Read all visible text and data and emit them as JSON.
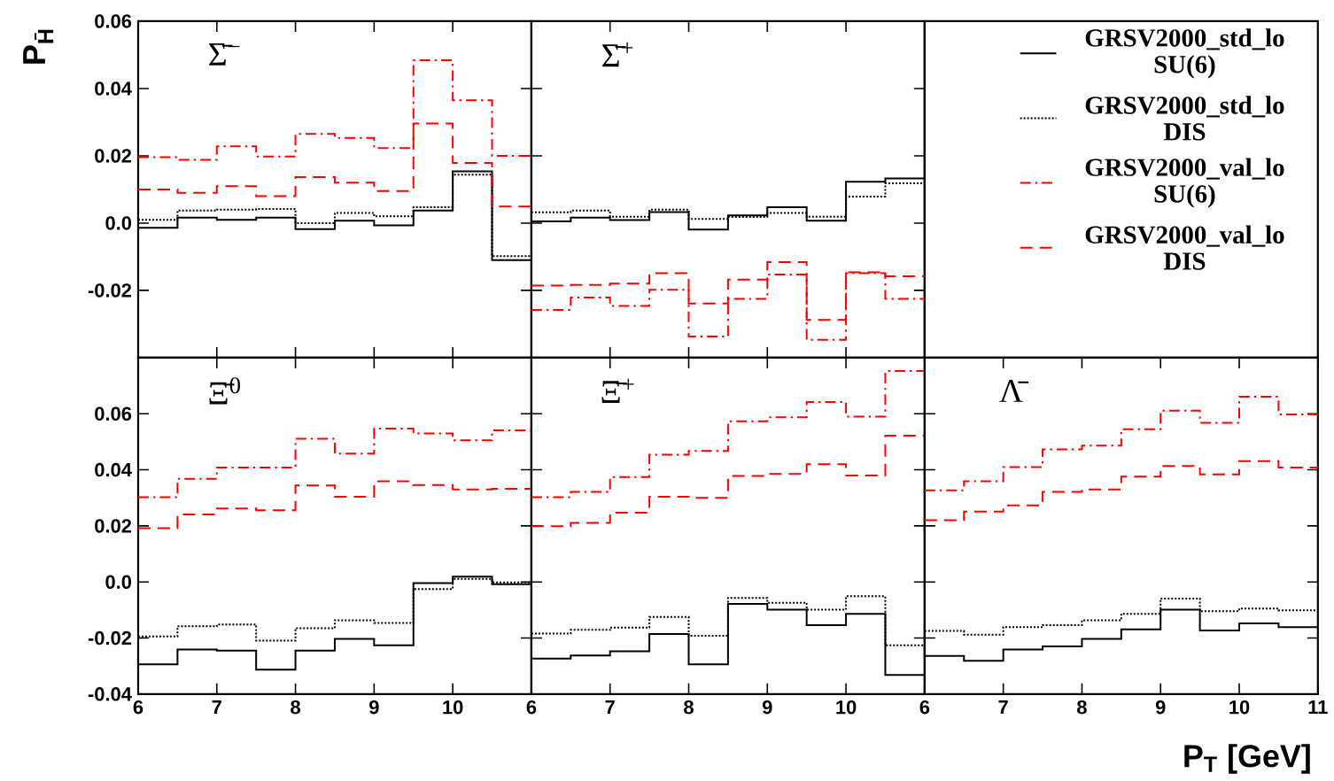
{
  "chart_data": [
    {
      "type": "step",
      "title": "Σ̄$^{−}$",
      "ylabel": "P$_{H̄}$",
      "x": [
        6,
        6.5,
        7,
        7.5,
        8,
        8.5,
        9,
        9.5,
        10,
        10.5,
        11
      ],
      "xlim": [
        6,
        11
      ],
      "ylim": [
        -0.04,
        0.06
      ],
      "xticks": [
        6,
        7,
        8,
        9,
        10
      ],
      "yticks": [
        -0.02,
        {
          "value": 0,
          "label": "0.0"
        },
        0.02,
        0.04,
        0.06
      ],
      "tick_labels": "y",
      "legend": "right",
      "series": [
        {
          "name": "GRSV2000_std_lo SU(6)",
          "color": "#000000",
          "line_style": "solid",
          "values": [
            -0.0014,
            0.0016,
            0.001,
            0.0016,
            -0.0018,
            0.0007,
            -0.0007,
            0.0037,
            0.0154,
            -0.011,
            -0.011
          ]
        },
        {
          "name": "GRSV2000_std_lo DIS",
          "color": "#000000",
          "line_style": "dotted",
          "values": [
            0.001,
            0.0037,
            0.004,
            0.0042,
            0.0,
            0.003,
            0.002,
            0.0047,
            0.0144,
            -0.0098,
            -0.0098
          ]
        },
        {
          "name": "GRSV2000_val_lo SU(6)",
          "color": "#ff0000",
          "line_style": "dashdot",
          "values": [
            0.0196,
            0.0188,
            0.0228,
            0.0198,
            0.0265,
            0.0253,
            0.0223,
            0.0484,
            0.0365,
            0.02,
            0.02
          ]
        },
        {
          "name": "GRSV2000_val_lo DIS",
          "color": "#ff0000",
          "line_style": "dashed",
          "values": [
            0.01,
            0.009,
            0.011,
            0.008,
            0.0137,
            0.012,
            0.0095,
            0.0296,
            0.0179,
            0.0049,
            0.0049
          ]
        }
      ]
    },
    {
      "type": "step",
      "title": "Σ̄$^{+}$",
      "x": [
        6,
        6.5,
        7,
        7.5,
        8,
        8.5,
        9,
        9.5,
        10,
        10.5,
        11
      ],
      "xlim": [
        6,
        11
      ],
      "ylim": [
        -0.04,
        0.06
      ],
      "xticks": [
        6,
        7,
        8,
        9,
        10
      ],
      "yticks": [
        -0.02,
        0,
        0.02,
        0.04,
        0.06
      ],
      "tick_labels": false,
      "series": [
        {
          "color": "#000000",
          "line_style": "solid",
          "values": [
            0.0005,
            0.0016,
            0.0009,
            0.0033,
            -0.0019,
            0.0023,
            0.0047,
            0.0007,
            0.0123,
            0.0133,
            0.0133
          ]
        },
        {
          "color": "#000000",
          "line_style": "dotted",
          "values": [
            0.0032,
            0.0037,
            0.0019,
            0.004,
            0.0012,
            0.0018,
            0.003,
            0.0019,
            0.0079,
            0.0118,
            0.0118
          ]
        },
        {
          "color": "#ff0000",
          "line_style": "dashdot",
          "values": [
            -0.0258,
            -0.0221,
            -0.0246,
            -0.0198,
            -0.0337,
            -0.0225,
            -0.0153,
            -0.0347,
            -0.0149,
            -0.0225,
            -0.0225
          ]
        },
        {
          "color": "#ff0000",
          "line_style": "dashed",
          "values": [
            -0.0186,
            -0.0184,
            -0.018,
            -0.0149,
            -0.0239,
            -0.0168,
            -0.0116,
            -0.0288,
            -0.0146,
            -0.0158,
            -0.0158
          ]
        }
      ]
    },
    {
      "type": "step",
      "title": "Ξ̄$^{0}$",
      "x": [
        6,
        6.5,
        7,
        7.5,
        8,
        8.5,
        9,
        9.5,
        10,
        10.5,
        11
      ],
      "xlim": [
        6,
        11
      ],
      "ylim": [
        -0.04,
        0.08
      ],
      "xticks": [
        6,
        7,
        8,
        9,
        10
      ],
      "yticks": [
        -0.04,
        -0.02,
        {
          "value": 0,
          "label": "0.0"
        },
        0.02,
        0.04,
        0.06
      ],
      "series": [
        {
          "color": "#000000",
          "line_style": "solid",
          "values": [
            -0.0294,
            -0.0241,
            -0.0245,
            -0.0313,
            -0.0245,
            -0.0203,
            -0.0226,
            -0.0004,
            0.0019,
            -0.0008,
            -0.0008
          ]
        },
        {
          "color": "#000000",
          "line_style": "dotted",
          "values": [
            -0.0194,
            -0.0158,
            -0.0152,
            -0.0209,
            -0.0165,
            -0.0137,
            -0.0146,
            -0.0025,
            0.0011,
            -0.0002,
            -0.0002
          ]
        },
        {
          "color": "#ff0000",
          "line_style": "dashdot",
          "values": [
            0.0302,
            0.0368,
            0.0408,
            0.0408,
            0.0511,
            0.0458,
            0.0547,
            0.053,
            0.0505,
            0.0541,
            0.0541
          ]
        },
        {
          "color": "#ff0000",
          "line_style": "dashed",
          "values": [
            0.0192,
            0.0241,
            0.0262,
            0.0256,
            0.0344,
            0.0304,
            0.0359,
            0.0346,
            0.033,
            0.0332,
            0.0332
          ]
        }
      ]
    },
    {
      "type": "step",
      "title": "Ξ̄$^{+}$",
      "x": [
        6,
        6.5,
        7,
        7.5,
        8,
        8.5,
        9,
        9.5,
        10,
        10.5,
        11
      ],
      "xlim": [
        6,
        11
      ],
      "ylim": [
        -0.04,
        0.08
      ],
      "xticks": [
        6,
        7,
        8,
        9,
        10
      ],
      "yticks": [
        -0.04,
        -0.02,
        0,
        0.02,
        0.04,
        0.06
      ],
      "tick_labels": "x",
      "series": [
        {
          "color": "#000000",
          "line_style": "solid",
          "values": [
            -0.0273,
            -0.0262,
            -0.0247,
            -0.0186,
            -0.0294,
            -0.0078,
            -0.0099,
            -0.0154,
            -0.0114,
            -0.0332,
            -0.0332
          ]
        },
        {
          "color": "#000000",
          "line_style": "dotted",
          "values": [
            -0.0184,
            -0.0171,
            -0.0163,
            -0.0125,
            -0.0192,
            -0.0057,
            -0.0074,
            -0.0099,
            -0.0051,
            -0.0226,
            -0.0226
          ]
        },
        {
          "color": "#ff0000",
          "line_style": "dashdot",
          "values": [
            0.0302,
            0.0321,
            0.0374,
            0.0454,
            0.0467,
            0.0573,
            0.0587,
            0.0642,
            0.059,
            0.0752,
            0.0752
          ]
        },
        {
          "color": "#ff0000",
          "line_style": "dashed",
          "values": [
            0.0199,
            0.0211,
            0.0247,
            0.0304,
            0.03,
            0.0378,
            0.0385,
            0.042,
            0.038,
            0.0522,
            0.0522
          ]
        }
      ]
    },
    {
      "type": "step",
      "title": "Λ̄",
      "xlabel": "P$_{T}$ [GeV]",
      "x": [
        6,
        6.5,
        7,
        7.5,
        8,
        8.5,
        9,
        9.5,
        10,
        10.5,
        11
      ],
      "xlim": [
        6,
        11
      ],
      "ylim": [
        -0.04,
        0.08
      ],
      "xticks": [
        6,
        7,
        8,
        9,
        10,
        11
      ],
      "yticks": [
        -0.04,
        -0.02,
        0,
        0.02,
        0.04,
        0.06
      ],
      "tick_labels": "x",
      "series": [
        {
          "color": "#000000",
          "line_style": "solid",
          "values": [
            -0.0264,
            -0.0281,
            -0.0241,
            -0.023,
            -0.0203,
            -0.0169,
            -0.0099,
            -0.0173,
            -0.0148,
            -0.0161,
            -0.0161
          ]
        },
        {
          "color": "#000000",
          "line_style": "dotted",
          "values": [
            -0.0175,
            -0.0188,
            -0.0161,
            -0.0154,
            -0.0137,
            -0.0114,
            -0.0059,
            -0.0104,
            -0.0095,
            -0.0101,
            -0.0101
          ]
        },
        {
          "color": "#ff0000",
          "line_style": "dashdot",
          "values": [
            0.0327,
            0.0359,
            0.041,
            0.0473,
            0.0486,
            0.0545,
            0.0611,
            0.0568,
            0.0661,
            0.0598,
            0.0598
          ]
        },
        {
          "color": "#ff0000",
          "line_style": "dashed",
          "values": [
            0.022,
            0.0251,
            0.0273,
            0.0321,
            0.033,
            0.0376,
            0.0414,
            0.0384,
            0.0431,
            0.0408,
            0.0408
          ]
        }
      ]
    }
  ]
}
